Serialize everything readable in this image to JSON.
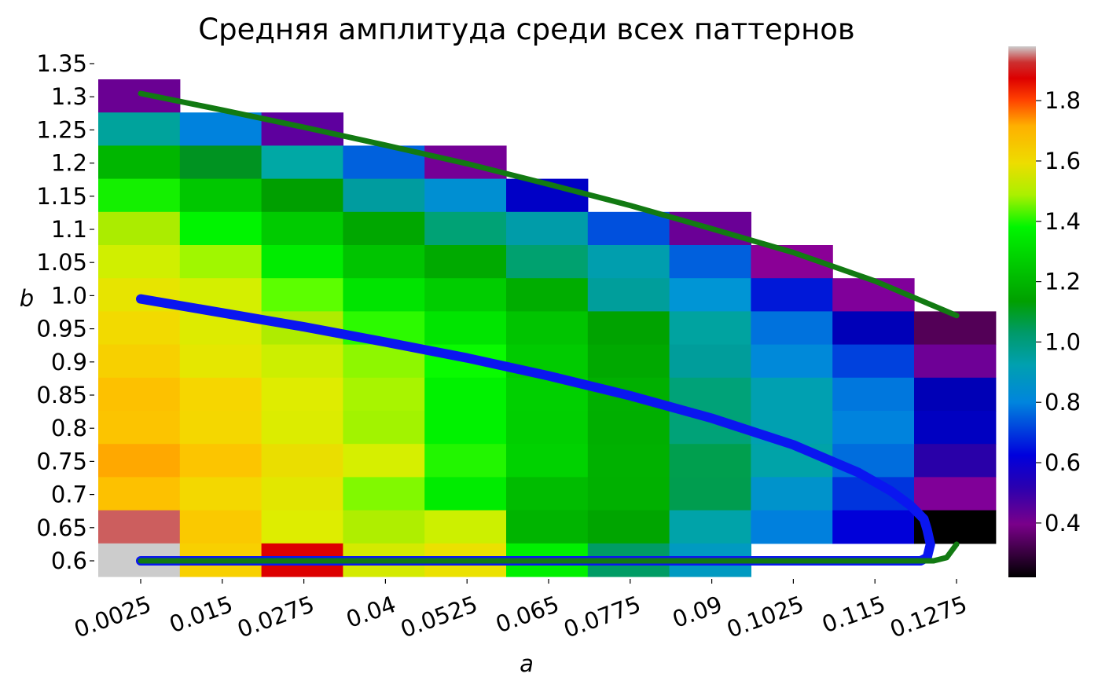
{
  "chart_data": {
    "type": "heatmap",
    "title": "Средняя амплитуда среди всех паттернов",
    "xlabel": "a",
    "ylabel": "b",
    "x_ticks": [
      "0.0025",
      "0.015",
      "0.0275",
      "0.04",
      "0.0525",
      "0.065",
      "0.0775",
      "0.09",
      "0.1025",
      "0.115",
      "0.1275"
    ],
    "y_ticks": [
      "1.35",
      "1.3",
      "1.25",
      "1.2",
      "1.15",
      "1.1",
      "1.05",
      "1.0",
      "0.95",
      "0.9",
      "0.85",
      "0.8",
      "0.75",
      "0.7",
      "0.65",
      "0.6"
    ],
    "colorbar": {
      "colormap": "nipy_spectral",
      "range": [
        0.22,
        1.98
      ],
      "ticks": [
        "0.4",
        "0.6",
        "0.8",
        "1.0",
        "1.2",
        "1.4",
        "1.6",
        "1.8"
      ]
    },
    "cells": [
      [
        "#6a0093",
        null,
        null,
        null,
        null,
        null,
        null,
        null,
        null,
        null,
        null
      ],
      [
        "#00a39c",
        "#0082dd",
        "#5e009e",
        null,
        null,
        null,
        null,
        null,
        null,
        null,
        null
      ],
      [
        "#00b600",
        "#009321",
        "#00a8a5",
        "#0061dd",
        "#750096",
        null,
        null,
        null,
        null,
        null,
        null
      ],
      [
        "#14f000",
        "#00c700",
        "#009f00",
        "#009c9f",
        "#008fd2",
        "#0000c6",
        null,
        null,
        null,
        null,
        null
      ],
      [
        "#abec00",
        "#00f400",
        "#00cb00",
        "#00a700",
        "#00a275",
        "#009ca9",
        "#0050dd",
        "#6a0096",
        null,
        null,
        null
      ],
      [
        "#d0ef00",
        "#a0f700",
        "#00ec00",
        "#00c400",
        "#00aa00",
        "#00a16f",
        "#009eae",
        "#0060dd",
        "#8a0096",
        null,
        null
      ],
      [
        "#e7e400",
        "#d4ef00",
        "#5cff00",
        "#00e400",
        "#00cd00",
        "#00ad00",
        "#009e9b",
        "#0095d5",
        "#0018d8",
        "#80009a",
        null
      ],
      [
        "#f2da00",
        "#ddeb00",
        "#afec00",
        "#2cfa00",
        "#00e500",
        "#00c400",
        "#00a300",
        "#00a3a0",
        "#0072dd",
        "#0000b8",
        "#530057"
      ],
      [
        "#f7d000",
        "#e5e700",
        "#ccef00",
        "#8ef700",
        "#09fb00",
        "#00cb00",
        "#00a900",
        "#009d9b",
        "#0089d9",
        "#0041dd",
        "#6e0096"
      ],
      [
        "#fdc100",
        "#f6d600",
        "#dfec00",
        "#a8f400",
        "#00f200",
        "#00d000",
        "#00b000",
        "#00a278",
        "#00a0b1",
        "#0077dd",
        "#0000b6"
      ],
      [
        "#fcc400",
        "#f4d700",
        "#dcec00",
        "#a2f300",
        "#00f200",
        "#00cf00",
        "#00af00",
        "#00a278",
        "#00a0b1",
        "#0083dd",
        "#0000c1"
      ],
      [
        "#ffa800",
        "#fcc500",
        "#eade00",
        "#d6ef00",
        "#22f600",
        "#00d200",
        "#00b100",
        "#009f4e",
        "#00a3a8",
        "#006ddd",
        "#2900a8"
      ],
      [
        "#fdc100",
        "#f3d800",
        "#e2e700",
        "#81f900",
        "#00ec00",
        "#00bc00",
        "#00b000",
        "#009d4f",
        "#0093cb",
        "#0034dd",
        "#800098"
      ],
      [
        "#cc5e5e",
        "#fac900",
        "#deed00",
        "#afee00",
        "#ccf000",
        "#00b400",
        "#00a500",
        "#00a3a9",
        "#0080dd",
        "#0000d9",
        "#000000"
      ],
      [
        "#cccccc",
        "#f8d000",
        "#dd0000",
        "#d4ea00",
        "#ebe100",
        "#00f000",
        "#009c64",
        "#009ac1",
        null,
        null,
        null
      ]
    ],
    "curves": {
      "green_upper": {
        "color": "#127a12",
        "points": [
          [
            0.0,
            1.305
          ],
          [
            0.0125,
            1.28
          ],
          [
            0.025,
            1.254
          ],
          [
            0.0375,
            1.227
          ],
          [
            0.05,
            1.199
          ],
          [
            0.0625,
            1.168
          ],
          [
            0.075,
            1.136
          ],
          [
            0.0875,
            1.101
          ],
          [
            0.1,
            1.065
          ],
          [
            0.1125,
            1.022
          ],
          [
            0.125,
            0.97
          ]
        ]
      },
      "green_lower": {
        "color": "#127a12",
        "points": [
          [
            0.0,
            0.6
          ],
          [
            0.1215,
            0.6
          ],
          [
            0.1235,
            0.605
          ],
          [
            0.125,
            0.625
          ]
        ]
      },
      "blue": {
        "color": "#0a16f0",
        "points": [
          [
            0.0,
            0.995
          ],
          [
            0.0125,
            0.974
          ],
          [
            0.025,
            0.953
          ],
          [
            0.0375,
            0.93
          ],
          [
            0.05,
            0.906
          ],
          [
            0.0625,
            0.879
          ],
          [
            0.075,
            0.849
          ],
          [
            0.0875,
            0.815
          ],
          [
            0.1,
            0.775
          ],
          [
            0.11,
            0.733
          ],
          [
            0.115,
            0.705
          ],
          [
            0.118,
            0.683
          ],
          [
            0.12,
            0.663
          ],
          [
            0.1205,
            0.647
          ],
          [
            0.121,
            0.625
          ],
          [
            0.1205,
            0.605
          ],
          [
            0.1195,
            0.6
          ],
          [
            0.0,
            0.6
          ]
        ]
      }
    }
  }
}
